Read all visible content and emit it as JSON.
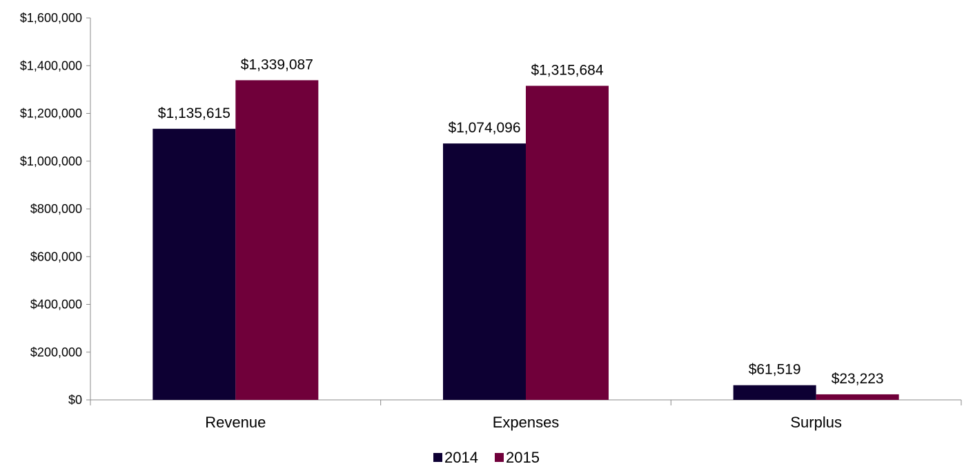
{
  "chart_data": {
    "type": "bar",
    "categories": [
      "Revenue",
      "Expenses",
      "Surplus"
    ],
    "series": [
      {
        "name": "2014",
        "color": "#0d0033",
        "values": [
          1135615,
          1074096,
          61519
        ],
        "labels": [
          "$1,135,615",
          "$1,074,096",
          "$61,519"
        ]
      },
      {
        "name": "2015",
        "color": "#70003a",
        "values": [
          1339087,
          1315684,
          23223
        ],
        "labels": [
          "$1,339,087",
          "$1,315,684",
          "$23,223"
        ]
      }
    ],
    "y_ticks": [
      "$0",
      "$200,000",
      "$400,000",
      "$600,000",
      "$800,000",
      "$1,000,000",
      "$1,200,000",
      "$1,400,000",
      "$1,600,000"
    ],
    "ylim": [
      0,
      1600000
    ],
    "grid": false,
    "legend_position": "bottom"
  }
}
